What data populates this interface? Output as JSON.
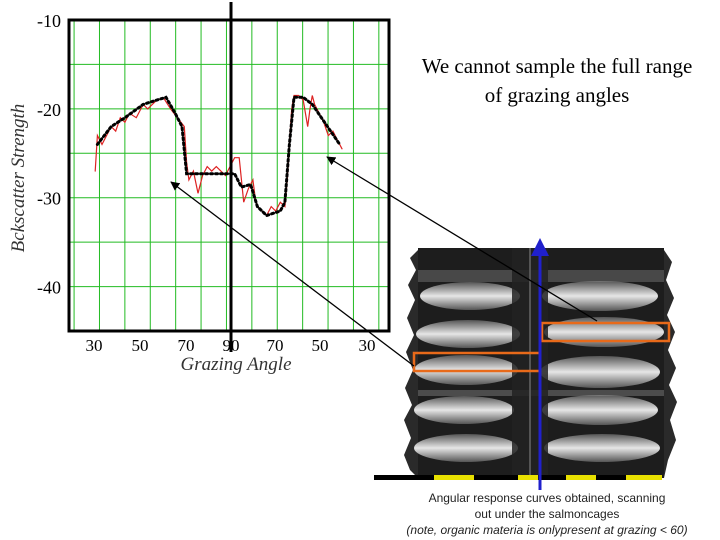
{
  "callout": {
    "line1": "We cannot sample the full range",
    "line2": "of grazing angles"
  },
  "caption": {
    "line1": "Angular response curves obtained, scanning",
    "line2": "out under  the salmoncages",
    "note": "(note, organic materia is onlypresent at grazing < 60)"
  },
  "colors": {
    "grid": "#22bb22",
    "raw_curve": "#dd2222",
    "fit_curve": "#000000",
    "highlight_box": "#e86a1a",
    "scan_arrow": "#2020cc",
    "scale_bar_yellow": "#e8e000"
  },
  "chart_data": {
    "type": "line",
    "xlabel": "Grazing Angle",
    "ylabel": "Bckscatter Strength",
    "x_tick_labels": [
      "30",
      "50",
      "70",
      "90",
      "70",
      "50",
      "30"
    ],
    "y_tick_labels": [
      "-10",
      "-20",
      "-30",
      "-40"
    ],
    "y_ticks": [
      -10,
      -20,
      -30,
      -40
    ],
    "ylim": [
      -45,
      -10
    ],
    "x_domain_note": "angle axis folds at 90: left half 25→90, right half 90→25",
    "grid": true,
    "series": [
      {
        "style": "red-thin",
        "points": [
          [
            27,
            -27
          ],
          [
            28,
            -23
          ],
          [
            30,
            -24
          ],
          [
            32,
            -23
          ],
          [
            34,
            -22
          ],
          [
            36,
            -22.5
          ],
          [
            38,
            -21
          ],
          [
            40,
            -21.5
          ],
          [
            42,
            -20.5
          ],
          [
            45,
            -21
          ],
          [
            48,
            -19.5
          ],
          [
            50,
            -20
          ],
          [
            52,
            -19.5
          ],
          [
            54,
            -19
          ],
          [
            57,
            -18.8
          ],
          [
            60,
            -20
          ],
          [
            63,
            -21
          ],
          [
            66,
            -22
          ],
          [
            67,
            -26
          ],
          [
            68,
            -28
          ],
          [
            70,
            -27
          ],
          [
            72,
            -29.5
          ],
          [
            74,
            -27.5
          ],
          [
            76,
            -26.5
          ],
          [
            78,
            -27
          ],
          [
            80,
            -26.5
          ],
          [
            82,
            -27
          ],
          [
            84,
            -27.5
          ],
          [
            86,
            -26.5
          ],
          [
            88,
            -25.5
          ],
          [
            90,
            -25.5
          ],
          [
            92,
            -30.5
          ],
          [
            94,
            -29
          ],
          [
            96,
            -28
          ],
          [
            97,
            -30
          ],
          [
            98,
            -31
          ],
          [
            100,
            -31.5
          ],
          [
            102,
            -32
          ],
          [
            104,
            -31
          ],
          [
            106,
            -31.5
          ],
          [
            108,
            -30.5
          ],
          [
            110,
            -31
          ],
          [
            111,
            -28
          ],
          [
            112,
            -24
          ],
          [
            113,
            -20
          ],
          [
            114,
            -18.5
          ],
          [
            116,
            -18.5
          ],
          [
            118,
            -19
          ],
          [
            120,
            -22
          ],
          [
            121,
            -20
          ],
          [
            122,
            -18.5
          ],
          [
            123,
            -19.5
          ],
          [
            125,
            -20.5
          ],
          [
            127,
            -21.5
          ],
          [
            129,
            -23
          ],
          [
            131,
            -22.5
          ],
          [
            133,
            -23.5
          ],
          [
            135,
            -24.5
          ]
        ]
      },
      {
        "style": "black-dotted",
        "points": [
          [
            28,
            -24
          ],
          [
            34,
            -22
          ],
          [
            40,
            -21
          ],
          [
            48,
            -19.5
          ],
          [
            54,
            -19
          ],
          [
            58,
            -18.7
          ],
          [
            62,
            -20.5
          ],
          [
            65,
            -22
          ],
          [
            67,
            -27.3
          ],
          [
            70,
            -27.3
          ],
          [
            80,
            -27.3
          ],
          [
            88,
            -27.3
          ],
          [
            91,
            -28.8
          ],
          [
            95,
            -28.5
          ],
          [
            98,
            -31
          ],
          [
            102,
            -32
          ],
          [
            108,
            -31.5
          ],
          [
            110,
            -30.5
          ],
          [
            112,
            -24
          ],
          [
            114,
            -18.7
          ],
          [
            118,
            -18.7
          ],
          [
            122,
            -19.5
          ],
          [
            126,
            -21
          ],
          [
            130,
            -22.5
          ],
          [
            134,
            -24
          ]
        ]
      }
    ],
    "marks": {
      "center_vertical_line_at": 90
    }
  }
}
